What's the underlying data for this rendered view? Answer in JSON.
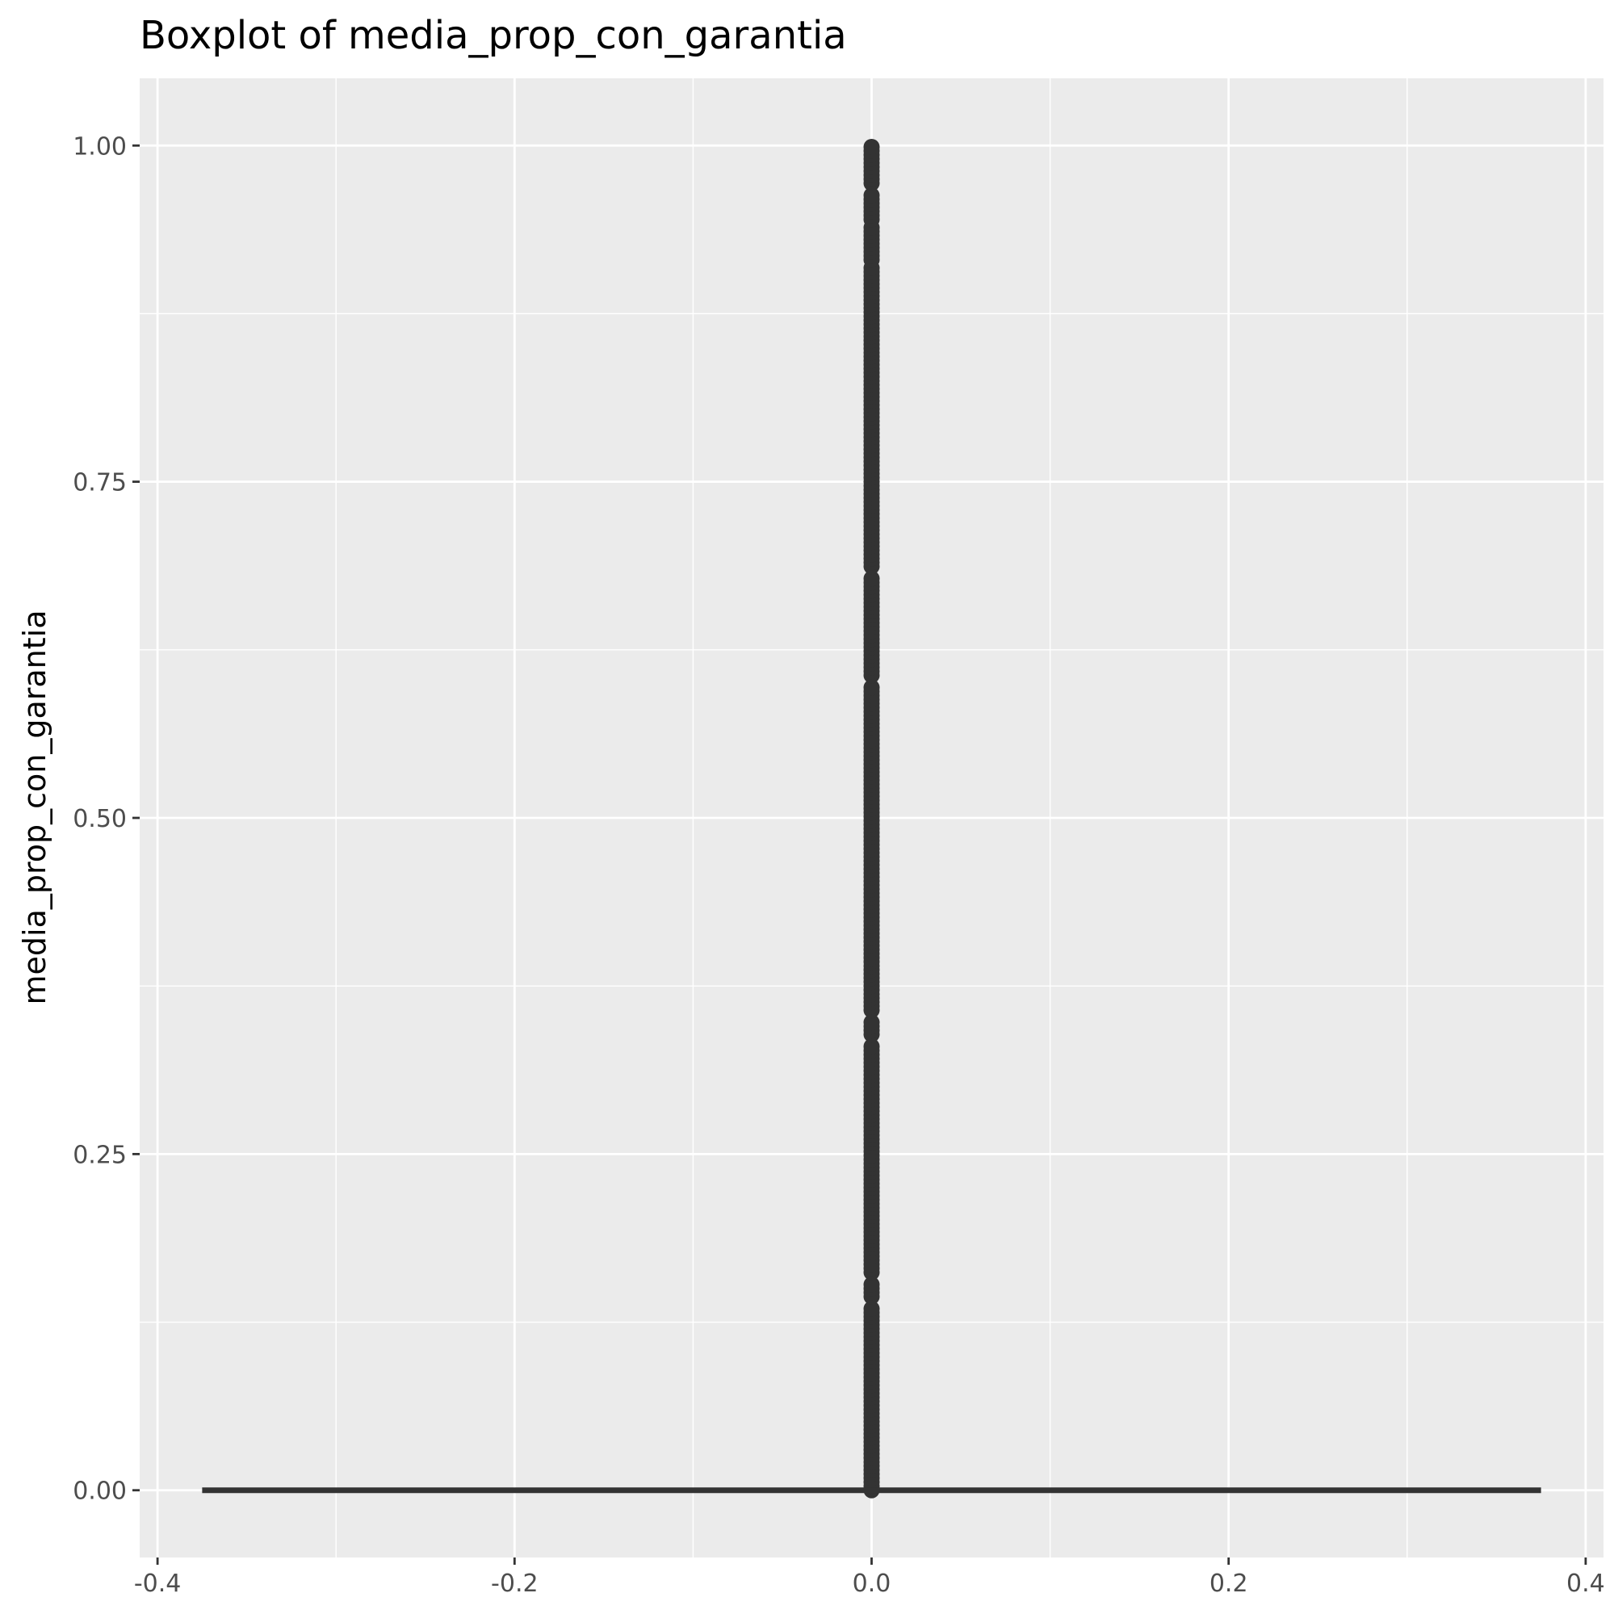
{
  "chart_data": {
    "type": "boxplot",
    "title": "Boxplot of media_prop_con_garantia",
    "xlabel": "",
    "ylabel": "media_prop_con_garantia",
    "xlim": [
      -0.41,
      0.41
    ],
    "ylim": [
      -0.05,
      1.05
    ],
    "x_ticks": [
      -0.4,
      -0.2,
      0.0,
      0.2,
      0.4
    ],
    "x_tick_labels": [
      "-0.4",
      "-0.2",
      "0.0",
      "0.2",
      "0.4"
    ],
    "y_ticks": [
      0.0,
      0.25,
      0.5,
      0.75,
      1.0
    ],
    "y_tick_labels": [
      "0.00",
      "0.25",
      "0.50",
      "0.75",
      "1.00"
    ],
    "grid": true,
    "box": {
      "x_center": 0.0,
      "width": 0.75,
      "min": 0.0,
      "q1": 0.0,
      "median": 0.0,
      "q3": 0.0,
      "max": 0.0
    },
    "outliers": {
      "x": 0.0,
      "y_min": 0.0,
      "y_max": 1.0,
      "gaps": [
        [
          0.137,
          0.143
        ],
        [
          0.154,
          0.16
        ],
        [
          0.333,
          0.337
        ],
        [
          0.35,
          0.355
        ],
        [
          0.6,
          0.605
        ],
        [
          0.68,
          0.685
        ],
        [
          0.91,
          0.915
        ],
        [
          0.94,
          0.945
        ],
        [
          0.965,
          0.97
        ]
      ]
    },
    "colors": {
      "panel": "#ebebeb",
      "grid": "#ffffff",
      "mark": "#333333"
    }
  }
}
